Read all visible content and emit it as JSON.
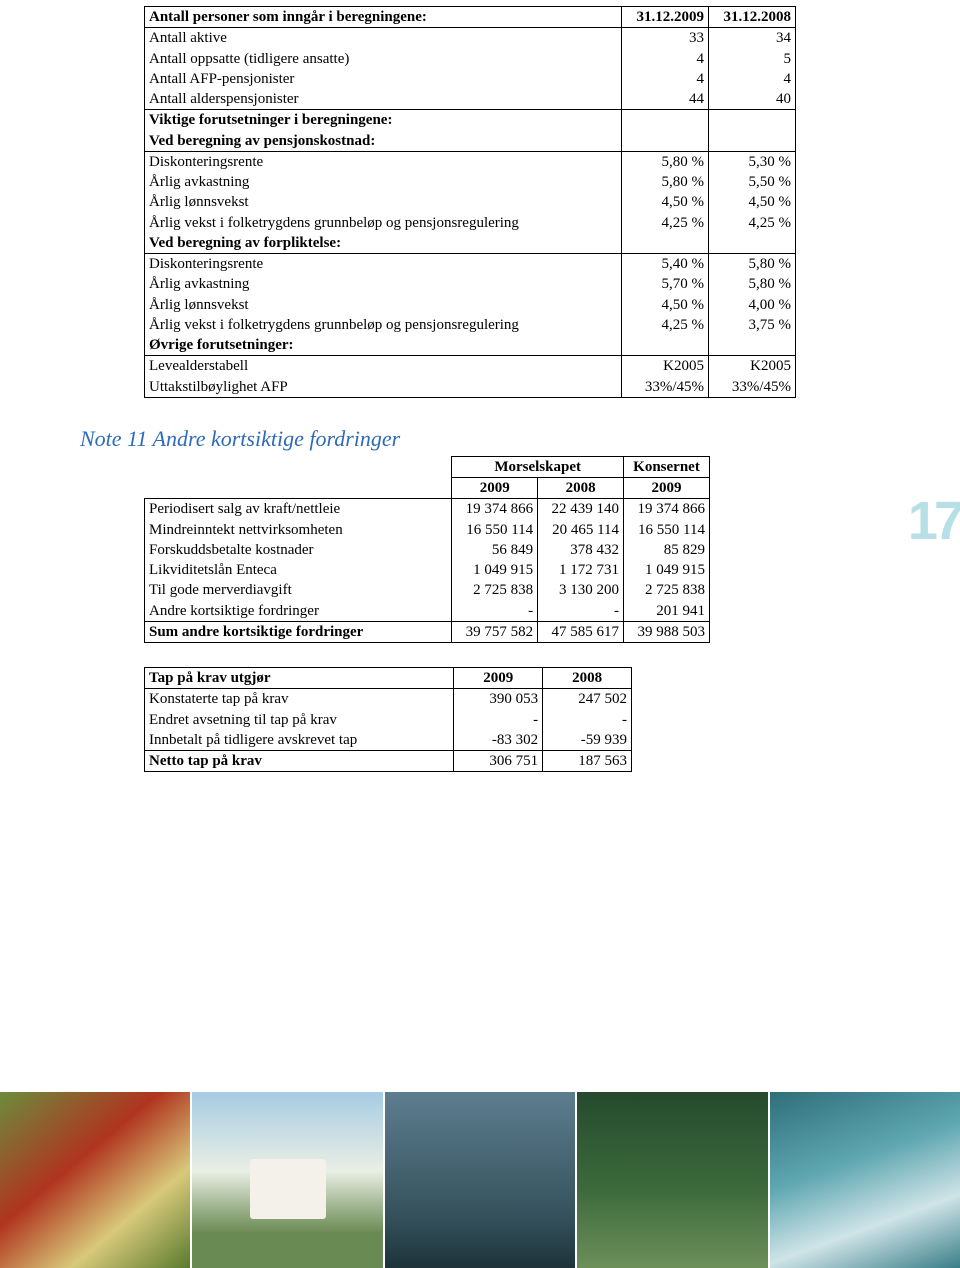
{
  "pension_table": {
    "header": {
      "label": "Antall personer som inngår i beregningene:",
      "col1": "31.12.2009",
      "col2": "31.12.2008"
    },
    "rows_counts": [
      {
        "label": "Antall aktive",
        "c1": "33",
        "c2": "34"
      },
      {
        "label": "Antall oppsatte (tidligere ansatte)",
        "c1": "4",
        "c2": "5"
      },
      {
        "label": "Antall AFP-pensjonister",
        "c1": "4",
        "c2": "4"
      },
      {
        "label": "Antall alderspensjonister",
        "c1": "44",
        "c2": "40"
      }
    ],
    "section1": "Viktige forutsetninger i beregningene:",
    "section2": "Ved beregning av pensjonskostnad:",
    "rows_pk": [
      {
        "label": "Diskonteringsrente",
        "c1": "5,80 %",
        "c2": "5,30 %"
      },
      {
        "label": "Årlig avkastning",
        "c1": "5,80 %",
        "c2": "5,50 %"
      },
      {
        "label": "Årlig lønnsvekst",
        "c1": "4,50 %",
        "c2": "4,50 %"
      },
      {
        "label": "Årlig vekst i folketrygdens grunnbeløp og pensjonsregulering",
        "c1": "4,25 %",
        "c2": "4,25 %"
      }
    ],
    "section3": "Ved beregning av forpliktelse:",
    "rows_fp": [
      {
        "label": "Diskonteringsrente",
        "c1": "5,40 %",
        "c2": "5,80 %"
      },
      {
        "label": "Årlig avkastning",
        "c1": "5,70 %",
        "c2": "5,80 %"
      },
      {
        "label": "Årlig lønnsvekst",
        "c1": "4,50 %",
        "c2": "4,00 %"
      },
      {
        "label": "Årlig vekst i folketrygdens grunnbeløp og pensjonsregulering",
        "c1": "4,25 %",
        "c2": "3,75 %"
      }
    ],
    "section4": "Øvrige forutsetninger:",
    "rows_ov": [
      {
        "label": "Levealderstabell",
        "c1": "K2005",
        "c2": "K2005"
      },
      {
        "label": "Uttakstilbøylighet AFP",
        "c1": "33%/45%",
        "c2": "33%/45%"
      }
    ]
  },
  "note_title": "Note 11  Andre kortsiktige fordringer",
  "receivables": {
    "group1": "Morselskapet",
    "group2": "Konsernet",
    "h1": "2009",
    "h2": "2008",
    "h3": "2009",
    "rows": [
      {
        "label": "Periodisert salg av kraft/nettleie",
        "c1": "19 374 866",
        "c2": "22 439 140",
        "c3": "19 374 866"
      },
      {
        "label": "Mindreinntekt nettvirksomheten",
        "c1": "16 550 114",
        "c2": "20 465 114",
        "c3": "16 550 114"
      },
      {
        "label": "Forskuddsbetalte kostnader",
        "c1": "56 849",
        "c2": "378 432",
        "c3": "85 829"
      },
      {
        "label": "Likviditetslån Enteca",
        "c1": "1 049 915",
        "c2": "1 172 731",
        "c3": "1 049 915"
      },
      {
        "label": "Til gode merverdiavgift",
        "c1": "2 725 838",
        "c2": "3 130 200",
        "c3": "2 725 838"
      },
      {
        "label": "Andre kortsiktige fordringer",
        "c1": "-",
        "c2": "-",
        "c3": "201 941"
      }
    ],
    "sum": {
      "label": "Sum andre kortsiktige fordringer",
      "c1": "39 757 582",
      "c2": "47 585 617",
      "c3": "39 988 503"
    }
  },
  "losses": {
    "header": {
      "label": "Tap på krav utgjør",
      "c1": "2009",
      "c2": "2008"
    },
    "rows": [
      {
        "label": "Konstaterte tap på krav",
        "c1": "390 053",
        "c2": "247 502"
      },
      {
        "label": "Endret avsetning til tap på krav",
        "c1": "-",
        "c2": "-"
      },
      {
        "label": "Innbetalt på tidligere avskrevet tap",
        "c1": "-83 302",
        "c2": "-59 939"
      }
    ],
    "sum": {
      "label": "Netto tap på krav",
      "c1": "306 751",
      "c2": "187 563"
    }
  },
  "page_number": "17",
  "colors": {
    "note_title": "#2e6bb8",
    "badge": "#b6dfe6",
    "border": "#000000",
    "background": "#ffffff"
  },
  "fontsizes": {
    "body": 15,
    "note_title": 22,
    "badge": 54
  }
}
